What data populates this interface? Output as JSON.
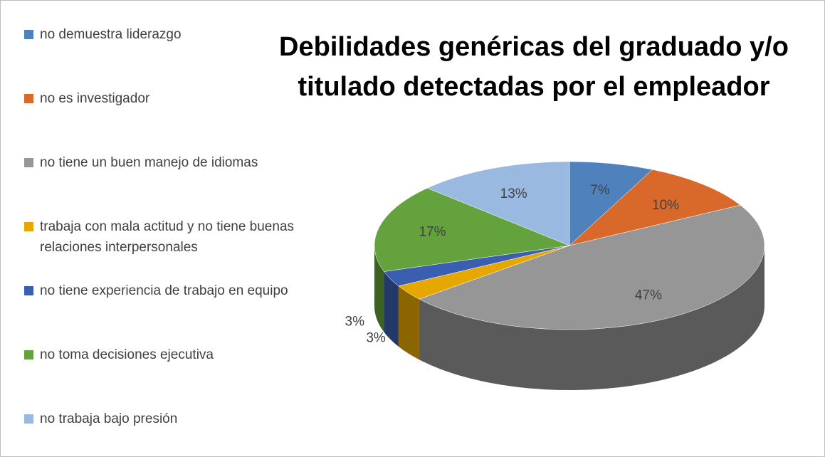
{
  "chart_data": {
    "type": "pie",
    "title": "Debilidades genéricas del graduado y/o titulado detectadas por el empleador",
    "categories": [
      "no demuestra liderazgo",
      "no es investigador",
      "no tiene un buen manejo de idiomas",
      "trabaja con mala actitud y no tiene buenas relaciones interpersonales",
      "no tiene experiencia de trabajo en equipo",
      "no toma decisiones ejecutiva",
      "no trabaja bajo presión"
    ],
    "values": [
      7,
      10,
      47,
      3,
      3,
      17,
      13
    ],
    "value_labels": [
      "7%",
      "10%",
      "47%",
      "3%",
      "3%",
      "17%",
      "13%"
    ],
    "colors": [
      "#4f81bd",
      "#d9692b",
      "#969696",
      "#e6a800",
      "#3a5fb0",
      "#64a23e",
      "#9ab9e0"
    ],
    "legend": "left"
  }
}
